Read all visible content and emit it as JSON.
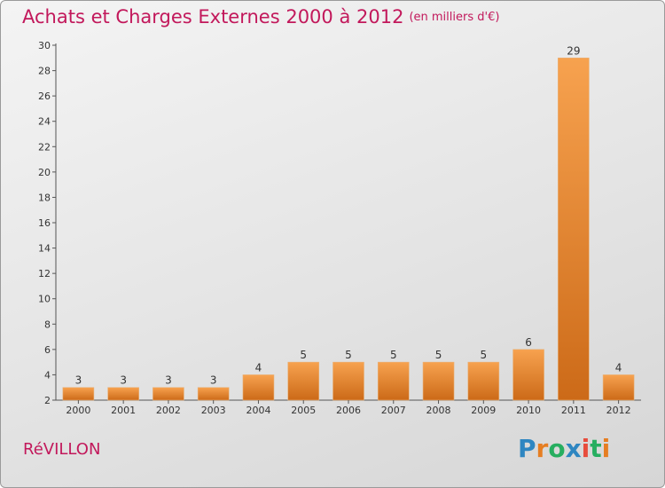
{
  "title": "Achats et Charges Externes 2000 à 2012",
  "unit": "(en milliers d'€)",
  "commune": "RéVILLON",
  "logo": {
    "text": "Proxiti",
    "letters": [
      "P",
      "r",
      "o",
      "x",
      "i",
      "t",
      "i"
    ],
    "colors": [
      "#2e86c1",
      "#e67e22",
      "#27ae60",
      "#2e86c1",
      "#e74c3c",
      "#27ae60",
      "#e67e22"
    ]
  },
  "colors": {
    "bar_top": "#f7a24f",
    "bar_bottom": "#cc6a18",
    "title": "#c2185b"
  },
  "chart_data": {
    "type": "bar",
    "categories": [
      "2000",
      "2001",
      "2002",
      "2003",
      "2004",
      "2005",
      "2006",
      "2007",
      "2008",
      "2009",
      "2010",
      "2011",
      "2012"
    ],
    "values": [
      3,
      3,
      3,
      3,
      4,
      5,
      5,
      5,
      5,
      5,
      6,
      29,
      4
    ],
    "ylim": [
      2,
      30
    ],
    "yticks": [
      2,
      4,
      6,
      8,
      10,
      12,
      14,
      16,
      18,
      20,
      22,
      24,
      26,
      28,
      30
    ],
    "grid": false,
    "xlabel": "",
    "ylabel": ""
  }
}
